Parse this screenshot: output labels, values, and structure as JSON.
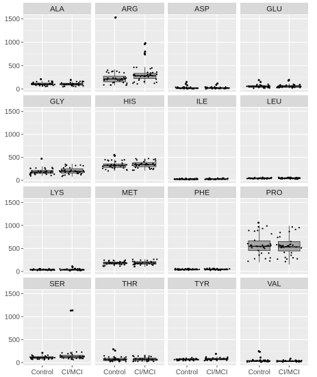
{
  "chart_data": {
    "type": "boxplot",
    "facet_layout": {
      "rows": 4,
      "cols": 4
    },
    "categories": [
      "Control",
      "CI/MCI"
    ],
    "y_ticks": [
      0,
      500,
      1000,
      1500
    ],
    "ylim": [
      -60,
      1580
    ],
    "grid": true,
    "colors": {
      "panel_bg": "#ebebeb",
      "strip_bg": "#d9d9d9",
      "grid_major": "#ffffff",
      "grid_minor": "#f5f5f5",
      "box_fill": "#a6a6a6",
      "point": "#000000"
    },
    "panels": [
      {
        "label": "ALA",
        "groups": [
          {
            "name": "Control",
            "min": 55,
            "q1": 88,
            "median": 105,
            "q3": 128,
            "max": 175,
            "outliers": [
              210
            ]
          },
          {
            "name": "CI/MCI",
            "min": 50,
            "q1": 85,
            "median": 102,
            "q3": 122,
            "max": 165,
            "outliers": [
              195
            ]
          }
        ]
      },
      {
        "label": "ARG",
        "groups": [
          {
            "name": "Control",
            "min": 80,
            "q1": 155,
            "median": 215,
            "q3": 275,
            "max": 420,
            "outliers": [
              1530,
              1525
            ]
          },
          {
            "name": "CI/MCI",
            "min": 110,
            "q1": 225,
            "median": 285,
            "q3": 335,
            "max": 470,
            "outliers": [
              980,
              960,
              800,
              760,
              740
            ]
          }
        ]
      },
      {
        "label": "ASP",
        "groups": [
          {
            "name": "Control",
            "min": 5,
            "q1": 12,
            "median": 20,
            "q3": 30,
            "max": 45,
            "outliers": [
              150,
              110,
              80
            ]
          },
          {
            "name": "CI/MCI",
            "min": 5,
            "q1": 12,
            "median": 20,
            "q3": 32,
            "max": 48,
            "outliers": [
              120,
              90
            ]
          }
        ]
      },
      {
        "label": "GLU",
        "groups": [
          {
            "name": "Control",
            "min": 15,
            "q1": 38,
            "median": 55,
            "q3": 72,
            "max": 110,
            "outliers": [
              190,
              150
            ]
          },
          {
            "name": "CI/MCI",
            "min": 15,
            "q1": 38,
            "median": 55,
            "q3": 75,
            "max": 115,
            "outliers": [
              195,
              180
            ]
          }
        ]
      },
      {
        "label": "GLY",
        "groups": [
          {
            "name": "Control",
            "min": 95,
            "q1": 150,
            "median": 180,
            "q3": 215,
            "max": 300,
            "outliers": [
              470
            ]
          },
          {
            "name": "CI/MCI",
            "min": 80,
            "q1": 155,
            "median": 195,
            "q3": 250,
            "max": 360,
            "outliers": []
          }
        ]
      },
      {
        "label": "HIS",
        "groups": [
          {
            "name": "Control",
            "min": 200,
            "q1": 280,
            "median": 320,
            "q3": 355,
            "max": 450,
            "outliers": [
              530,
              550
            ]
          },
          {
            "name": "CI/MCI",
            "min": 210,
            "q1": 295,
            "median": 340,
            "q3": 385,
            "max": 480,
            "outliers": []
          }
        ]
      },
      {
        "label": "ILE",
        "groups": [
          {
            "name": "Control",
            "min": 12,
            "q1": 20,
            "median": 26,
            "q3": 32,
            "max": 45,
            "outliers": []
          },
          {
            "name": "CI/MCI",
            "min": 12,
            "q1": 22,
            "median": 28,
            "q3": 36,
            "max": 52,
            "outliers": []
          }
        ]
      },
      {
        "label": "LEU",
        "groups": [
          {
            "name": "Control",
            "min": 25,
            "q1": 38,
            "median": 45,
            "q3": 52,
            "max": 66,
            "outliers": []
          },
          {
            "name": "CI/MCI",
            "min": 25,
            "q1": 38,
            "median": 46,
            "q3": 54,
            "max": 68,
            "outliers": []
          }
        ]
      },
      {
        "label": "LYS",
        "groups": [
          {
            "name": "Control",
            "min": 18,
            "q1": 30,
            "median": 38,
            "q3": 46,
            "max": 62,
            "outliers": []
          },
          {
            "name": "CI/MCI",
            "min": 15,
            "q1": 28,
            "median": 37,
            "q3": 47,
            "max": 70,
            "outliers": [
              110,
              95
            ]
          }
        ]
      },
      {
        "label": "MET",
        "groups": [
          {
            "name": "Control",
            "min": 110,
            "q1": 160,
            "median": 182,
            "q3": 205,
            "max": 250,
            "outliers": []
          },
          {
            "name": "CI/MCI",
            "min": 100,
            "q1": 160,
            "median": 185,
            "q3": 212,
            "max": 265,
            "outliers": []
          }
        ]
      },
      {
        "label": "PHE",
        "groups": [
          {
            "name": "Control",
            "min": 25,
            "q1": 38,
            "median": 45,
            "q3": 52,
            "max": 66,
            "outliers": []
          },
          {
            "name": "CI/MCI",
            "min": 25,
            "q1": 38,
            "median": 46,
            "q3": 55,
            "max": 70,
            "outliers": []
          }
        ]
      },
      {
        "label": "PRO",
        "groups": [
          {
            "name": "Control",
            "min": 200,
            "q1": 455,
            "median": 545,
            "q3": 665,
            "max": 1000,
            "outliers": [
              1060
            ]
          },
          {
            "name": "CI/MCI",
            "min": 150,
            "q1": 445,
            "median": 535,
            "q3": 650,
            "max": 990,
            "outliers": []
          }
        ]
      },
      {
        "label": "SER",
        "groups": [
          {
            "name": "Control",
            "min": 60,
            "q1": 90,
            "median": 110,
            "q3": 130,
            "max": 175,
            "outliers": [
              210
            ]
          },
          {
            "name": "CI/MCI",
            "min": 60,
            "q1": 100,
            "median": 125,
            "q3": 160,
            "max": 240,
            "outliers": [
              1135,
              1130
            ]
          }
        ]
      },
      {
        "label": "THR",
        "groups": [
          {
            "name": "Control",
            "min": 20,
            "q1": 45,
            "median": 65,
            "q3": 92,
            "max": 150,
            "outliers": [
              290,
              260
            ]
          },
          {
            "name": "CI/MCI",
            "min": 20,
            "q1": 45,
            "median": 70,
            "q3": 100,
            "max": 170,
            "outliers": []
          }
        ]
      },
      {
        "label": "TYR",
        "groups": [
          {
            "name": "Control",
            "min": 40,
            "q1": 58,
            "median": 68,
            "q3": 80,
            "max": 110,
            "outliers": []
          },
          {
            "name": "CI/MCI",
            "min": 40,
            "q1": 62,
            "median": 75,
            "q3": 92,
            "max": 130,
            "outliers": [
              190
            ]
          }
        ]
      },
      {
        "label": "VAL",
        "groups": [
          {
            "name": "Control",
            "min": 12,
            "q1": 25,
            "median": 35,
            "q3": 45,
            "max": 65,
            "outliers": [
              245,
              235,
              110
            ]
          },
          {
            "name": "CI/MCI",
            "min": 12,
            "q1": 22,
            "median": 32,
            "q3": 42,
            "max": 60,
            "outliers": [
              85
            ]
          }
        ]
      }
    ]
  }
}
